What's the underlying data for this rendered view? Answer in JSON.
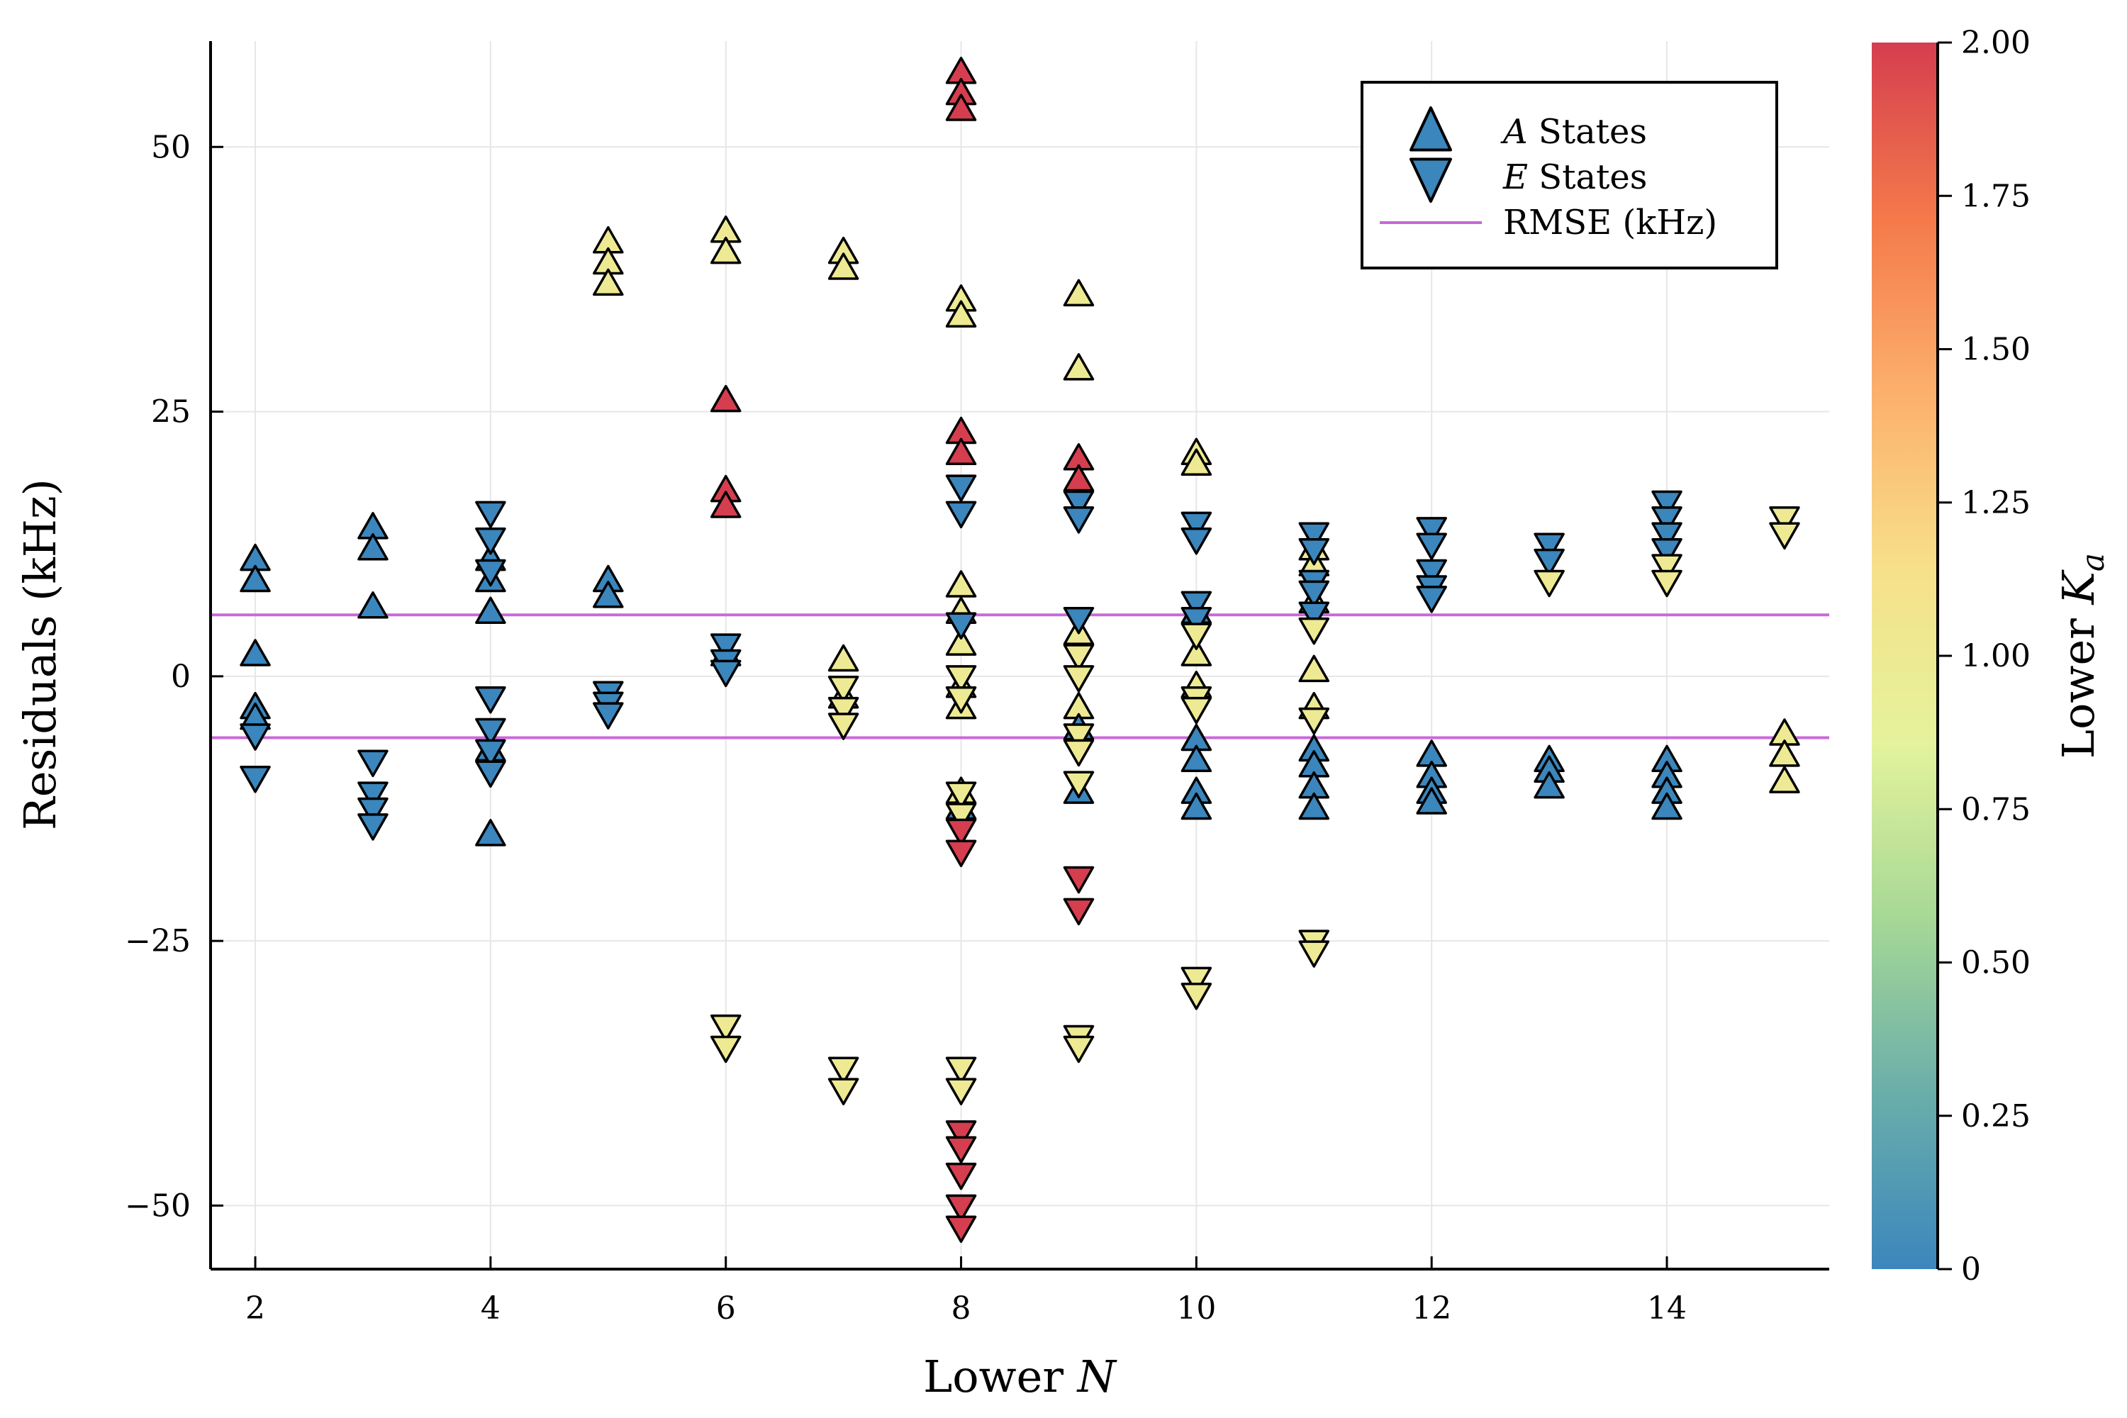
{
  "chart_data": {
    "type": "scatter",
    "xlabel": {
      "text": "Lower ",
      "var": "N"
    },
    "ylabel": "Residuals (kHz)",
    "xlim": [
      1.62,
      15.38
    ],
    "ylim": [
      -56,
      60
    ],
    "xticks": [
      2,
      4,
      6,
      8,
      10,
      12,
      14
    ],
    "xtick_labels": [
      "2",
      "4",
      "6",
      "8",
      "10",
      "12",
      "14"
    ],
    "yticks": [
      -50,
      -25,
      0,
      25,
      50
    ],
    "ytick_labels": [
      "−50",
      "−25",
      "0",
      "25",
      "50"
    ],
    "grid": true,
    "legend": {
      "placement": "top-right",
      "entries": [
        {
          "var": "A",
          "text": " States",
          "marker": "triangle-up"
        },
        {
          "var": "E",
          "text": " States",
          "marker": "triangle-down"
        },
        {
          "var": "",
          "text": "RMSE (kHz)",
          "marker": "line"
        }
      ]
    },
    "rmse": {
      "value": 5.8,
      "color": "#c86ad8"
    },
    "colorbar": {
      "label": {
        "text": "Lower ",
        "var": "K",
        "sub": "a"
      },
      "range": [
        0,
        2
      ],
      "ticks": [
        0,
        0.25,
        0.5,
        0.75,
        1.0,
        1.25,
        1.5,
        1.75,
        2.0
      ],
      "tick_labels": [
        "0",
        "0.25",
        "0.50",
        "0.75",
        "1.00",
        "1.25",
        "1.50",
        "1.75",
        "2.00"
      ],
      "stops": [
        "#3b86bd",
        "#6aaeaa",
        "#a6d896",
        "#e4f39c",
        "#f7e08a",
        "#fcb06c",
        "#f4794b",
        "#d53e4f"
      ]
    },
    "series": [
      {
        "name": "A States",
        "marker": "triangle-up",
        "points": [
          {
            "x": 2,
            "y": 11,
            "c": 0
          },
          {
            "x": 2,
            "y": 9,
            "c": 0
          },
          {
            "x": 2,
            "y": 2,
            "c": 0
          },
          {
            "x": 2,
            "y": -3,
            "c": 0
          },
          {
            "x": 2,
            "y": -4,
            "c": 0
          },
          {
            "x": 3,
            "y": 14,
            "c": 0
          },
          {
            "x": 3,
            "y": 12,
            "c": 0
          },
          {
            "x": 3,
            "y": 6.5,
            "c": 0
          },
          {
            "x": 4,
            "y": 11,
            "c": 0
          },
          {
            "x": 4,
            "y": 9,
            "c": 0
          },
          {
            "x": 4,
            "y": 6,
            "c": 0
          },
          {
            "x": 4,
            "y": -7,
            "c": 0
          },
          {
            "x": 4,
            "y": -15,
            "c": 0
          },
          {
            "x": 5,
            "y": 41,
            "c": 1
          },
          {
            "x": 5,
            "y": 39,
            "c": 1
          },
          {
            "x": 5,
            "y": 37,
            "c": 1
          },
          {
            "x": 5,
            "y": 9,
            "c": 0
          },
          {
            "x": 5,
            "y": 7.5,
            "c": 0
          },
          {
            "x": 6,
            "y": 42,
            "c": 1
          },
          {
            "x": 6,
            "y": 40,
            "c": 1
          },
          {
            "x": 6,
            "y": 26,
            "c": 2
          },
          {
            "x": 6,
            "y": 17.5,
            "c": 2
          },
          {
            "x": 6,
            "y": 16,
            "c": 2
          },
          {
            "x": 6,
            "y": 2,
            "c": 0
          },
          {
            "x": 7,
            "y": 40,
            "c": 1
          },
          {
            "x": 7,
            "y": 38.5,
            "c": 1
          },
          {
            "x": 7,
            "y": 1.5,
            "c": 1
          },
          {
            "x": 7,
            "y": -2,
            "c": 1
          },
          {
            "x": 8,
            "y": 57,
            "c": 2
          },
          {
            "x": 8,
            "y": 55,
            "c": 2
          },
          {
            "x": 8,
            "y": 53.5,
            "c": 2
          },
          {
            "x": 8,
            "y": 35.5,
            "c": 1
          },
          {
            "x": 8,
            "y": 34,
            "c": 1
          },
          {
            "x": 8,
            "y": 23,
            "c": 2
          },
          {
            "x": 8,
            "y": 21,
            "c": 2
          },
          {
            "x": 8,
            "y": 8.5,
            "c": 1
          },
          {
            "x": 8,
            "y": 6,
            "c": 1
          },
          {
            "x": 8,
            "y": 3,
            "c": 1
          },
          {
            "x": 8,
            "y": -1,
            "c": 1
          },
          {
            "x": 8,
            "y": -3,
            "c": 1
          },
          {
            "x": 8,
            "y": -11,
            "c": 1
          },
          {
            "x": 8,
            "y": -12.5,
            "c": 0
          },
          {
            "x": 9,
            "y": 36,
            "c": 1
          },
          {
            "x": 9,
            "y": 29,
            "c": 1
          },
          {
            "x": 9,
            "y": 20.5,
            "c": 2
          },
          {
            "x": 9,
            "y": 18.5,
            "c": 2
          },
          {
            "x": 9,
            "y": 4,
            "c": 1
          },
          {
            "x": 9,
            "y": -3,
            "c": 1
          },
          {
            "x": 9,
            "y": -5,
            "c": 0
          },
          {
            "x": 9,
            "y": -11,
            "c": 0
          },
          {
            "x": 10,
            "y": 21,
            "c": 1
          },
          {
            "x": 10,
            "y": 20,
            "c": 1
          },
          {
            "x": 10,
            "y": 6,
            "c": 0
          },
          {
            "x": 10,
            "y": 2,
            "c": 1
          },
          {
            "x": 10,
            "y": -1,
            "c": 1
          },
          {
            "x": 10,
            "y": -6,
            "c": 0
          },
          {
            "x": 10,
            "y": -8,
            "c": 0
          },
          {
            "x": 10,
            "y": -11,
            "c": 0
          },
          {
            "x": 10,
            "y": -12.5,
            "c": 0
          },
          {
            "x": 11,
            "y": 12,
            "c": 1
          },
          {
            "x": 11,
            "y": 10.5,
            "c": 1
          },
          {
            "x": 11,
            "y": 7,
            "c": 1
          },
          {
            "x": 11,
            "y": 0.5,
            "c": 1
          },
          {
            "x": 11,
            "y": -3,
            "c": 1
          },
          {
            "x": 11,
            "y": -7,
            "c": 0
          },
          {
            "x": 11,
            "y": -8.5,
            "c": 0
          },
          {
            "x": 11,
            "y": -10.5,
            "c": 0
          },
          {
            "x": 11,
            "y": -12.5,
            "c": 0
          },
          {
            "x": 12,
            "y": -7.5,
            "c": 0
          },
          {
            "x": 12,
            "y": -9.5,
            "c": 0
          },
          {
            "x": 12,
            "y": -11,
            "c": 0
          },
          {
            "x": 12,
            "y": -12,
            "c": 0
          },
          {
            "x": 13,
            "y": -8,
            "c": 0
          },
          {
            "x": 13,
            "y": -9,
            "c": 0
          },
          {
            "x": 13,
            "y": -10.5,
            "c": 0
          },
          {
            "x": 14,
            "y": -8,
            "c": 0
          },
          {
            "x": 14,
            "y": -9.5,
            "c": 0
          },
          {
            "x": 14,
            "y": -11,
            "c": 0
          },
          {
            "x": 14,
            "y": -12.5,
            "c": 0
          },
          {
            "x": 15,
            "y": -5.5,
            "c": 1
          },
          {
            "x": 15,
            "y": -7.5,
            "c": 1
          },
          {
            "x": 15,
            "y": -10,
            "c": 1
          }
        ]
      },
      {
        "name": "E States",
        "marker": "triangle-down",
        "points": [
          {
            "x": 2,
            "y": -5.5,
            "c": 0
          },
          {
            "x": 2,
            "y": -9.5,
            "c": 0
          },
          {
            "x": 3,
            "y": -8,
            "c": 0
          },
          {
            "x": 3,
            "y": -11,
            "c": 0
          },
          {
            "x": 3,
            "y": -12.5,
            "c": 0
          },
          {
            "x": 3,
            "y": -14,
            "c": 0
          },
          {
            "x": 4,
            "y": 15.5,
            "c": 0
          },
          {
            "x": 4,
            "y": 13,
            "c": 0
          },
          {
            "x": 4,
            "y": 10,
            "c": 0
          },
          {
            "x": 4,
            "y": -2,
            "c": 0
          },
          {
            "x": 4,
            "y": -5,
            "c": 0
          },
          {
            "x": 4,
            "y": -7,
            "c": 0
          },
          {
            "x": 4,
            "y": -9,
            "c": 0
          },
          {
            "x": 5,
            "y": -1.5,
            "c": 0
          },
          {
            "x": 5,
            "y": -2.5,
            "c": 0
          },
          {
            "x": 5,
            "y": -3.5,
            "c": 0
          },
          {
            "x": 6,
            "y": 3,
            "c": 0
          },
          {
            "x": 6,
            "y": 1.5,
            "c": 0
          },
          {
            "x": 6,
            "y": 0.5,
            "c": 0
          },
          {
            "x": 6,
            "y": -33,
            "c": 1
          },
          {
            "x": 6,
            "y": -35,
            "c": 1
          },
          {
            "x": 7,
            "y": -1,
            "c": 1
          },
          {
            "x": 7,
            "y": -3,
            "c": 1
          },
          {
            "x": 7,
            "y": -4.5,
            "c": 1
          },
          {
            "x": 7,
            "y": -37,
            "c": 1
          },
          {
            "x": 7,
            "y": -39,
            "c": 1
          },
          {
            "x": 8,
            "y": 18,
            "c": 0
          },
          {
            "x": 8,
            "y": 15.5,
            "c": 0
          },
          {
            "x": 8,
            "y": 5,
            "c": 0
          },
          {
            "x": 8,
            "y": 0,
            "c": 1
          },
          {
            "x": 8,
            "y": -2,
            "c": 1
          },
          {
            "x": 8,
            "y": -11,
            "c": 1
          },
          {
            "x": 8,
            "y": -13,
            "c": 1
          },
          {
            "x": 8,
            "y": -14.5,
            "c": 2
          },
          {
            "x": 8,
            "y": -16.5,
            "c": 2
          },
          {
            "x": 8,
            "y": -37,
            "c": 1
          },
          {
            "x": 8,
            "y": -39,
            "c": 1
          },
          {
            "x": 8,
            "y": -43,
            "c": 2
          },
          {
            "x": 8,
            "y": -44.5,
            "c": 2
          },
          {
            "x": 8,
            "y": -47,
            "c": 2
          },
          {
            "x": 8,
            "y": -50,
            "c": 2
          },
          {
            "x": 8,
            "y": -52,
            "c": 2
          },
          {
            "x": 9,
            "y": 16.5,
            "c": 0
          },
          {
            "x": 9,
            "y": 15,
            "c": 0
          },
          {
            "x": 9,
            "y": 5.5,
            "c": 0
          },
          {
            "x": 9,
            "y": 2,
            "c": 1
          },
          {
            "x": 9,
            "y": 0,
            "c": 1
          },
          {
            "x": 9,
            "y": -5.5,
            "c": 1
          },
          {
            "x": 9,
            "y": -7,
            "c": 1
          },
          {
            "x": 9,
            "y": -10,
            "c": 1
          },
          {
            "x": 9,
            "y": -19,
            "c": 2
          },
          {
            "x": 9,
            "y": -22,
            "c": 2
          },
          {
            "x": 9,
            "y": -34,
            "c": 1
          },
          {
            "x": 9,
            "y": -35,
            "c": 1
          },
          {
            "x": 10,
            "y": 14.5,
            "c": 0
          },
          {
            "x": 10,
            "y": 13,
            "c": 0
          },
          {
            "x": 10,
            "y": 7,
            "c": 0
          },
          {
            "x": 10,
            "y": 5.5,
            "c": 0
          },
          {
            "x": 10,
            "y": 4,
            "c": 1
          },
          {
            "x": 10,
            "y": -2,
            "c": 1
          },
          {
            "x": 10,
            "y": -3,
            "c": 1
          },
          {
            "x": 10,
            "y": -28.5,
            "c": 1
          },
          {
            "x": 10,
            "y": -30,
            "c": 1
          },
          {
            "x": 11,
            "y": 13.5,
            "c": 0
          },
          {
            "x": 11,
            "y": 12,
            "c": 0
          },
          {
            "x": 11,
            "y": 9,
            "c": 0
          },
          {
            "x": 11,
            "y": 8,
            "c": 0
          },
          {
            "x": 11,
            "y": 6,
            "c": 0
          },
          {
            "x": 11,
            "y": 4.5,
            "c": 1
          },
          {
            "x": 11,
            "y": -4,
            "c": 1
          },
          {
            "x": 11,
            "y": -25,
            "c": 1
          },
          {
            "x": 11,
            "y": -26,
            "c": 1
          },
          {
            "x": 12,
            "y": 14,
            "c": 0
          },
          {
            "x": 12,
            "y": 12.5,
            "c": 0
          },
          {
            "x": 12,
            "y": 10,
            "c": 0
          },
          {
            "x": 12,
            "y": 8.5,
            "c": 0
          },
          {
            "x": 12,
            "y": 7.5,
            "c": 0
          },
          {
            "x": 13,
            "y": 12.5,
            "c": 0
          },
          {
            "x": 13,
            "y": 11,
            "c": 0
          },
          {
            "x": 13,
            "y": 9,
            "c": 1
          },
          {
            "x": 14,
            "y": 16.5,
            "c": 0
          },
          {
            "x": 14,
            "y": 15,
            "c": 0
          },
          {
            "x": 14,
            "y": 13.5,
            "c": 0
          },
          {
            "x": 14,
            "y": 12,
            "c": 0
          },
          {
            "x": 14,
            "y": 10.5,
            "c": 1
          },
          {
            "x": 14,
            "y": 9,
            "c": 1
          },
          {
            "x": 15,
            "y": 15,
            "c": 1
          },
          {
            "x": 15,
            "y": 13.5,
            "c": 1
          }
        ]
      }
    ]
  }
}
